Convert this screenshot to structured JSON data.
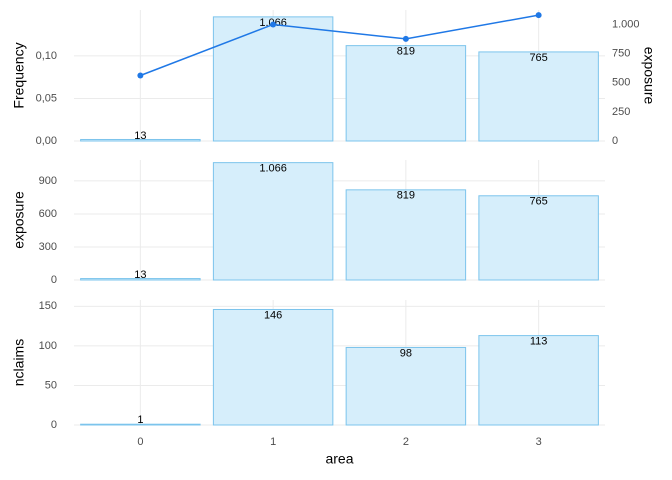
{
  "chart_data": [
    {
      "type": "bar",
      "ylabel": "Frequency",
      "y2label": "exposure",
      "ylim": [
        0,
        0.154
      ],
      "yticks": [
        {
          "value": 0,
          "label": "0,00"
        },
        {
          "value": 0.05,
          "label": "0,05"
        },
        {
          "value": 0.1,
          "label": "0,10"
        }
      ],
      "y2lim": [
        0,
        1125
      ],
      "y2ticks": [
        0,
        250,
        500,
        750,
        {
          "value": 1000,
          "label": "1.000"
        }
      ],
      "grid": true,
      "series": [
        {
          "type": "bar",
          "axis": "y2",
          "color": "#d6eefb",
          "stroke": "#7cc4ec",
          "values": [
            13,
            1066,
            819,
            765
          ],
          "value_labels": [
            "13",
            "1.066",
            "819",
            "765"
          ]
        },
        {
          "type": "line",
          "color": "#1f78e6",
          "values": [
            0.077,
            0.137,
            0.12,
            0.148
          ]
        }
      ]
    },
    {
      "type": "bar",
      "ylabel": "exposure",
      "ylim": [
        0,
        1090
      ],
      "yticks": [
        0,
        300,
        600,
        900
      ],
      "grid": true,
      "series": [
        {
          "type": "bar",
          "color": "#d6eefb",
          "stroke": "#7cc4ec",
          "values": [
            13,
            1066,
            819,
            765
          ],
          "value_labels": [
            "13",
            "1.066",
            "819",
            "765"
          ]
        }
      ]
    },
    {
      "type": "bar",
      "ylabel": "nclaims",
      "xlabel": "area",
      "categories": [
        "0",
        "1",
        "2",
        "3"
      ],
      "ylim": [
        0,
        158
      ],
      "yticks": [
        0,
        50,
        100,
        150
      ],
      "grid": true,
      "series": [
        {
          "type": "bar",
          "color": "#d6eefb",
          "stroke": "#7cc4ec",
          "values": [
            1,
            146,
            98,
            113
          ]
        }
      ]
    }
  ]
}
